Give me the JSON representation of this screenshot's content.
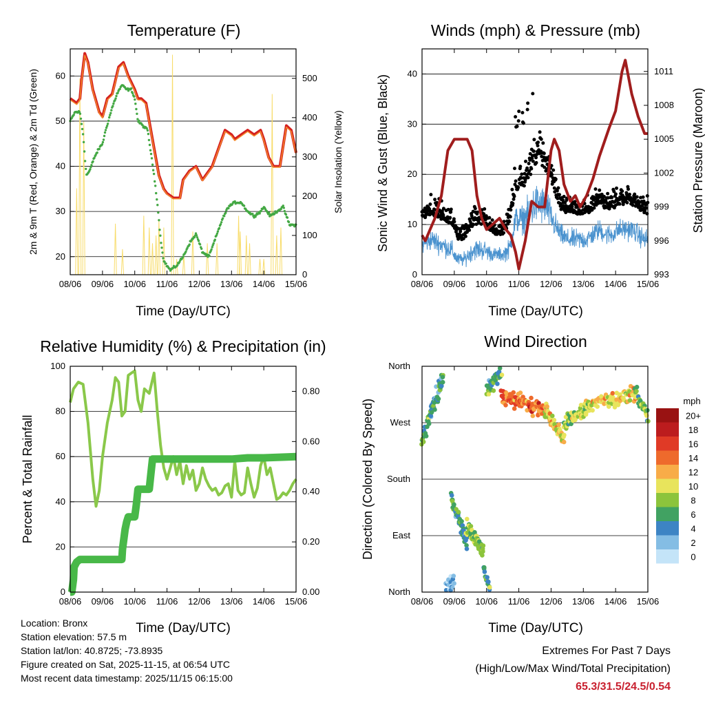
{
  "x_ticks": [
    "08/06",
    "09/06",
    "10/06",
    "11/06",
    "12/06",
    "13/06",
    "14/06",
    "15/06"
  ],
  "info": {
    "location": "Location: Bronx",
    "elevation": "Station elevation: 57.5 m",
    "latlon": "Station lat/lon: 40.8725; -73.8935",
    "created": "Figure created on Sat, 2025-11-15, at 06:54 UTC",
    "latest": "Most recent data timestamp: 2025/11/15 06:15:00"
  },
  "extremes": {
    "title": "Extremes For Past 7 Days",
    "subtitle": "(High/Low/Max Wind/Total Precipitation)",
    "values": "65.3/31.5/24.5/0.54"
  },
  "colors": {
    "temp2m": "#d42020",
    "temp9m": "#f58a2a",
    "dew": "#44a844",
    "solar": "#f8dc6a",
    "wind": "#4b93cf",
    "gust": "#000000",
    "pressure": "#a01d1d",
    "rh": "#8ac84a",
    "precip": "#48b848"
  },
  "chart_data": [
    {
      "type": "line",
      "title": "Temperature (F)",
      "xlabel": "Time (Day/UTC)",
      "ylabel": "2m & 9m T (Red, Orange) & 2m Td (Green)",
      "y2label": "Solar Insolation (Yellow)",
      "xlim": [
        0,
        7
      ],
      "ylim": [
        16,
        66
      ],
      "y2lim": [
        0,
        575
      ],
      "yticks": [
        "20",
        "30",
        "40",
        "50",
        "60"
      ],
      "y2ticks": [
        "0",
        "100",
        "200",
        "300",
        "400",
        "500"
      ],
      "series": [
        {
          "name": "2m T",
          "x": [
            0,
            0.1,
            0.2,
            0.3,
            0.35,
            0.45,
            0.55,
            0.7,
            0.9,
            1.0,
            1.15,
            1.3,
            1.5,
            1.65,
            1.8,
            2.0,
            2.1,
            2.2,
            2.35,
            2.5,
            2.6,
            2.75,
            2.9,
            3.0,
            3.2,
            3.4,
            3.5,
            3.7,
            3.9,
            4.1,
            4.2,
            4.4,
            4.6,
            4.8,
            5.0,
            5.1,
            5.3,
            5.5,
            5.7,
            5.9,
            6.0,
            6.15,
            6.3,
            6.5,
            6.7,
            6.85,
            7.0
          ],
          "y": [
            55,
            54.5,
            54,
            55,
            59,
            65,
            63,
            57,
            52,
            51,
            55,
            56,
            62,
            63,
            60,
            57,
            55,
            55,
            54,
            48,
            44,
            38,
            35,
            34,
            33,
            33,
            37,
            39,
            40,
            37,
            38,
            40,
            44,
            48,
            47,
            46,
            47,
            48,
            47,
            48,
            46,
            42,
            40,
            40,
            49,
            48,
            43
          ]
        },
        {
          "name": "9m T",
          "x": [
            0,
            0.1,
            0.2,
            0.3,
            0.35,
            0.45,
            0.55,
            0.7,
            0.9,
            1.0,
            1.15,
            1.3,
            1.5,
            1.65,
            1.8,
            2.0,
            2.1,
            2.2,
            2.35,
            2.5,
            2.6,
            2.75,
            2.9,
            3.0,
            3.2,
            3.4,
            3.5,
            3.7,
            3.9,
            4.1,
            4.2,
            4.4,
            4.6,
            4.8,
            5.0,
            5.1,
            5.3,
            5.5,
            5.7,
            5.9,
            6.0,
            6.15,
            6.3,
            6.5,
            6.7,
            6.85,
            7.0
          ],
          "y": [
            54.7,
            54.2,
            53.7,
            54.7,
            58.7,
            64.6,
            62.7,
            56.7,
            51.7,
            50.7,
            54.7,
            55.7,
            61.7,
            62.7,
            59.7,
            56.7,
            54.7,
            54.7,
            53.7,
            47.7,
            43.7,
            37.8,
            34.8,
            33.8,
            32.8,
            32.8,
            36.8,
            38.8,
            39.8,
            36.8,
            37.8,
            39.8,
            43.8,
            47.7,
            46.7,
            45.7,
            46.7,
            47.7,
            46.7,
            47.7,
            45.7,
            41.8,
            39.8,
            39.8,
            48.7,
            47.7,
            42.8
          ]
        },
        {
          "name": "2m Td",
          "x": [
            0,
            0.15,
            0.3,
            0.4,
            0.5,
            0.6,
            0.75,
            0.9,
            1.0,
            1.1,
            1.3,
            1.45,
            1.6,
            1.75,
            1.9,
            2.0,
            2.1,
            2.25,
            2.4,
            2.5,
            2.6,
            2.7,
            2.8,
            2.9,
            3.0,
            3.1,
            3.3,
            3.5,
            3.7,
            3.9,
            4.1,
            4.3,
            4.5,
            4.7,
            4.9,
            5.1,
            5.3,
            5.5,
            5.7,
            5.9,
            6.0,
            6.2,
            6.4,
            6.6,
            6.8,
            7.0
          ],
          "y": [
            50,
            52,
            52,
            47,
            38,
            39,
            42,
            44,
            45,
            48,
            53,
            56,
            58,
            57,
            57,
            55,
            50,
            49,
            48,
            43,
            38,
            32,
            24,
            19,
            18,
            17,
            18,
            20,
            23,
            25,
            21,
            20,
            24,
            28,
            31,
            32,
            32,
            30,
            29,
            30,
            31,
            29,
            30,
            31,
            27,
            27
          ]
        }
      ],
      "solar": {
        "name": "Solar Insolation",
        "peaks": [
          {
            "x": 0.2,
            "v": 220
          },
          {
            "x": 0.3,
            "v": 500
          },
          {
            "x": 0.42,
            "v": 390
          },
          {
            "x": 1.4,
            "v": 130
          },
          {
            "x": 1.62,
            "v": 65
          },
          {
            "x": 2.28,
            "v": 150
          },
          {
            "x": 2.45,
            "v": 120
          },
          {
            "x": 2.55,
            "v": 80
          },
          {
            "x": 2.66,
            "v": 100
          },
          {
            "x": 2.75,
            "v": 140
          },
          {
            "x": 2.9,
            "v": 120
          },
          {
            "x": 3.17,
            "v": 560
          },
          {
            "x": 3.3,
            "v": 40
          },
          {
            "x": 3.52,
            "v": 50
          },
          {
            "x": 3.8,
            "v": 110
          },
          {
            "x": 4.25,
            "v": 80
          },
          {
            "x": 4.55,
            "v": 80
          },
          {
            "x": 5.22,
            "v": 150
          },
          {
            "x": 5.27,
            "v": 110
          },
          {
            "x": 5.46,
            "v": 100
          },
          {
            "x": 5.56,
            "v": 80
          },
          {
            "x": 5.88,
            "v": 40
          },
          {
            "x": 6.0,
            "v": 40
          },
          {
            "x": 6.26,
            "v": 460
          },
          {
            "x": 6.4,
            "v": 100
          },
          {
            "x": 6.53,
            "v": 120
          }
        ]
      }
    },
    {
      "type": "scatter",
      "title": "Winds (mph) & Pressure (mb)",
      "xlabel": "Time (Day/UTC)",
      "ylabel": "Sonic Wind & Gust (Blue, Black)",
      "y2label": "Station Pressure (Maroon)",
      "xlim": [
        0,
        7
      ],
      "ylim": [
        0,
        45
      ],
      "y2lim": [
        993,
        1013
      ],
      "yticks": [
        "0",
        "10",
        "20",
        "30",
        "40"
      ],
      "y2ticks": [
        "993",
        "996",
        "999",
        "1002",
        "1005",
        "1008",
        "1011"
      ],
      "wind_profile": {
        "x": [
          0,
          0.3,
          0.6,
          0.9,
          1.1,
          1.3,
          1.6,
          1.9,
          2.2,
          2.5,
          2.7,
          2.9,
          3.1,
          3.3,
          3.5,
          3.7,
          3.9,
          4.1,
          4.3,
          4.5,
          4.7,
          4.9,
          5.1,
          5.3,
          5.5,
          5.7,
          5.9,
          6.1,
          6.3,
          6.5,
          6.7,
          6.9,
          7.0
        ],
        "mean": [
          6,
          7,
          6,
          5,
          3,
          3,
          5,
          5,
          4,
          4,
          5,
          11,
          11,
          12,
          14,
          14,
          13,
          10,
          8,
          7,
          7,
          7,
          7,
          8,
          9,
          8,
          8,
          9,
          9,
          9,
          8,
          7,
          7
        ],
        "spread": [
          3,
          3,
          3,
          3,
          2,
          2,
          3,
          3,
          2,
          2,
          3,
          4,
          4,
          5,
          6,
          6,
          5,
          4,
          3,
          3,
          3,
          3,
          3,
          3,
          3,
          3,
          3,
          3,
          3,
          3,
          3,
          3,
          3
        ]
      },
      "pressure": {
        "x": [
          0,
          0.1,
          0.25,
          0.4,
          0.6,
          0.8,
          1.0,
          1.2,
          1.4,
          1.55,
          1.7,
          1.85,
          2.0,
          2.2,
          2.4,
          2.6,
          2.75,
          2.9,
          3.0,
          3.2,
          3.4,
          3.6,
          3.8,
          4.0,
          4.1,
          4.25,
          4.4,
          4.6,
          4.75,
          4.9,
          5.1,
          5.3,
          5.5,
          5.8,
          6.0,
          6.2,
          6.3,
          6.5,
          6.7,
          6.9,
          7.0
        ],
        "y": [
          996.5,
          996,
          997,
          998,
          1000,
          1004,
          1005,
          1005,
          1005,
          1004,
          1000,
          998,
          997,
          997.5,
          998,
          997,
          996.5,
          995,
          993.5,
          996,
          999.5,
          999,
          999,
          1004,
          1005,
          1004,
          1001,
          999.5,
          1000,
          999,
          1000,
          1001.5,
          1003.5,
          1006,
          1007.5,
          1011,
          1012,
          1009,
          1007,
          1005.5,
          1005.5
        ]
      }
    },
    {
      "type": "line",
      "title": "Relative Humidity (%) & Precipitation (in)",
      "xlabel": "Time (Day/UTC)",
      "ylabel": "Percent & Total Rainfall",
      "xlim": [
        0,
        7
      ],
      "ylim": [
        0,
        100
      ],
      "y2lim": [
        0,
        0.9
      ],
      "yticks": [
        "0",
        "20",
        "40",
        "60",
        "80",
        "100"
      ],
      "y2ticks": [
        "0.00",
        "0.20",
        "0.40",
        "0.60",
        "0.80"
      ],
      "series": [
        {
          "name": "Relative Humidity",
          "x": [
            0,
            0.1,
            0.25,
            0.4,
            0.55,
            0.7,
            0.8,
            0.9,
            1.0,
            1.15,
            1.3,
            1.4,
            1.5,
            1.6,
            1.7,
            1.8,
            1.9,
            2.0,
            2.1,
            2.2,
            2.3,
            2.45,
            2.6,
            2.7,
            2.8,
            2.9,
            3.0,
            3.1,
            3.2,
            3.3,
            3.4,
            3.5,
            3.6,
            3.7,
            3.8,
            3.9,
            4.0,
            4.1,
            4.2,
            4.3,
            4.4,
            4.5,
            4.6,
            4.7,
            4.8,
            4.9,
            5.0,
            5.1,
            5.2,
            5.3,
            5.4,
            5.5,
            5.6,
            5.7,
            5.8,
            5.9,
            6.0,
            6.1,
            6.2,
            6.3,
            6.4,
            6.5,
            6.6,
            6.7,
            6.8,
            6.9,
            7.0
          ],
          "y": [
            84,
            90,
            93,
            92,
            75,
            50,
            38,
            45,
            60,
            75,
            85,
            95,
            93,
            78,
            80,
            96,
            97,
            98,
            85,
            80,
            90,
            88,
            97,
            80,
            65,
            55,
            50,
            55,
            60,
            52,
            58,
            48,
            56,
            50,
            54,
            45,
            48,
            55,
            50,
            47,
            45,
            46,
            43,
            44,
            47,
            48,
            42,
            58,
            45,
            43,
            44,
            55,
            48,
            42,
            46,
            56,
            60,
            52,
            55,
            48,
            41,
            42,
            44,
            43,
            45,
            48,
            50
          ]
        },
        {
          "name": "Total Precipitation",
          "x": [
            0,
            0.05,
            0.1,
            0.12,
            0.2,
            0.3,
            0.5,
            1.0,
            1.5,
            1.6,
            1.62,
            1.7,
            1.75,
            1.8,
            1.9,
            2.0,
            2.05,
            2.1,
            2.3,
            2.45,
            2.5,
            2.55,
            3.0,
            4.0,
            5.0,
            5.5,
            6.0,
            7.0
          ],
          "y": [
            0,
            0,
            0.05,
            0.1,
            0.12,
            0.13,
            0.13,
            0.13,
            0.13,
            0.13,
            0.17,
            0.25,
            0.28,
            0.3,
            0.3,
            0.3,
            0.35,
            0.41,
            0.41,
            0.41,
            0.47,
            0.53,
            0.53,
            0.53,
            0.53,
            0.535,
            0.535,
            0.54
          ]
        }
      ]
    },
    {
      "type": "scatter",
      "title": "Wind Direction",
      "xlabel": "Time (Day/UTC)",
      "ylabel": "Direction (Colored By Speed)",
      "xlim": [
        0,
        7
      ],
      "ylim": [
        0,
        360
      ],
      "yticks": [
        "North",
        "East",
        "South",
        "West",
        "North"
      ],
      "colorbar": {
        "unit": "mph",
        "labels": [
          "0",
          "2",
          "4",
          "6",
          "8",
          "10",
          "12",
          "14",
          "16",
          "18",
          "20+"
        ],
        "colors": [
          "#c4e4f8",
          "#84bde4",
          "#3d84c4",
          "#41a262",
          "#8cc43c",
          "#e8e45c",
          "#f8ac48",
          "#ee6a2c",
          "#e03a26",
          "#bc1c1e",
          "#991212"
        ]
      },
      "segments": [
        {
          "x0": 0,
          "x1": 0.25,
          "d0": 240,
          "d1": 280,
          "s": 6,
          "n": 24
        },
        {
          "x0": 0.25,
          "x1": 0.65,
          "d0": 280,
          "d1": 345,
          "s": 5,
          "n": 40
        },
        {
          "x0": 0.9,
          "x1": 1.4,
          "d0": 150,
          "d1": 80,
          "s": 6,
          "n": 55
        },
        {
          "x0": 1.4,
          "x1": 1.9,
          "d0": 105,
          "d1": 65,
          "s": 8,
          "n": 55
        },
        {
          "x0": 0.75,
          "x1": 1.0,
          "d0": 20,
          "d1": 10,
          "s": 2,
          "n": 18
        },
        {
          "x0": 1.9,
          "x1": 2.1,
          "d0": 40,
          "d1": 5,
          "s": 5,
          "n": 16
        },
        {
          "x0": 2.0,
          "x1": 2.45,
          "d0": 320,
          "d1": 350,
          "s": 6,
          "n": 30
        },
        {
          "x0": 2.45,
          "x1": 3.8,
          "d0": 315,
          "d1": 290,
          "s": 14,
          "n": 90
        },
        {
          "x0": 3.8,
          "x1": 4.4,
          "d0": 290,
          "d1": 245,
          "s": 10,
          "n": 60
        },
        {
          "x0": 4.4,
          "x1": 5.2,
          "d0": 265,
          "d1": 300,
          "s": 9,
          "n": 60
        },
        {
          "x0": 5.2,
          "x1": 6.6,
          "d0": 300,
          "d1": 315,
          "s": 11,
          "n": 80
        },
        {
          "x0": 6.6,
          "x1": 7.0,
          "d0": 320,
          "d1": 280,
          "s": 7,
          "n": 30
        }
      ]
    }
  ]
}
